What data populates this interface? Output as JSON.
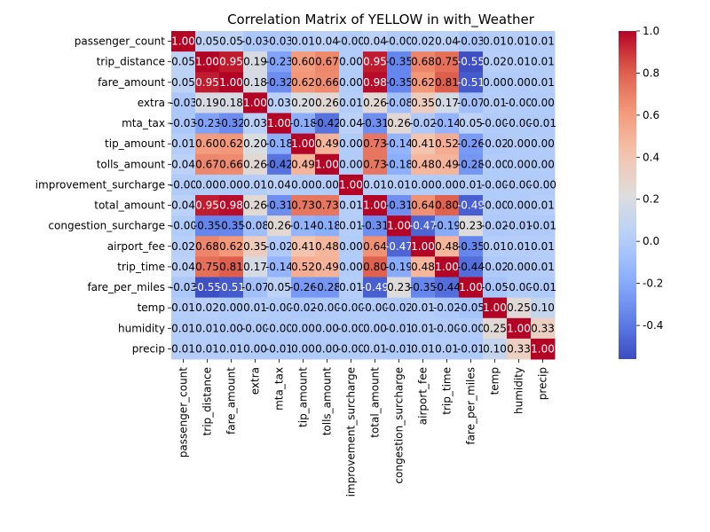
{
  "chart_data": {
    "type": "heatmap",
    "title": "Correlation Matrix of YELLOW in with_Weather",
    "colormap": "coolwarm",
    "color_range": [
      -0.56,
      1.0
    ],
    "colorbar_ticks": [
      "-0.4",
      "-0.2",
      "0.0",
      "0.2",
      "0.4",
      "0.6",
      "0.8",
      "1.0"
    ],
    "colorbar_tick_values": [
      -0.4,
      -0.2,
      0.0,
      0.2,
      0.4,
      0.6,
      0.8,
      1.0
    ],
    "variables": [
      "passenger_count",
      "trip_distance",
      "fare_amount",
      "extra",
      "mta_tax",
      "tip_amount",
      "tolls_amount",
      "improvement_surcharge",
      "total_amount",
      "congestion_surcharge",
      "airport_fee",
      "trip_time",
      "fare_per_miles",
      "temp",
      "humidity",
      "precip"
    ],
    "labels": [
      [
        "1.00",
        "0.05",
        "0.05",
        "-0.03",
        "-0.03",
        "0.01",
        "0.04",
        "-0.00",
        "0.04",
        "-0.00",
        "0.02",
        "0.04",
        "-0.03",
        "0.01",
        "0.01",
        "0.01"
      ],
      [
        "0.05",
        "1.00",
        "0.95",
        "0.19",
        "-0.23",
        "0.60",
        "0.67",
        "0.00",
        "0.95",
        "-0.35",
        "0.68",
        "0.75",
        "-0.55",
        "0.02",
        "0.01",
        "0.01"
      ],
      [
        "0.05",
        "0.95",
        "1.00",
        "0.18",
        "-0.32",
        "0.62",
        "0.66",
        "0.00",
        "0.98",
        "-0.35",
        "0.62",
        "0.81",
        "-0.51",
        "0.00",
        "0.00",
        "0.01"
      ],
      [
        "-0.03",
        "0.19",
        "0.18",
        "1.00",
        "0.03",
        "0.20",
        "0.26",
        "0.01",
        "0.26",
        "-0.08",
        "0.35",
        "0.17",
        "-0.07",
        "0.01",
        "-0.00",
        "0.00"
      ],
      [
        "-0.03",
        "-0.23",
        "-0.32",
        "0.03",
        "1.00",
        "-0.18",
        "-0.42",
        "0.04",
        "-0.31",
        "0.26",
        "-0.02",
        "-0.14",
        "0.05",
        "-0.00",
        "-0.00",
        "-0.01"
      ],
      [
        "0.01",
        "0.60",
        "0.62",
        "0.20",
        "-0.18",
        "1.00",
        "0.49",
        "0.00",
        "0.73",
        "-0.14",
        "0.41",
        "0.52",
        "-0.26",
        "-0.02",
        "0.00",
        "0.00"
      ],
      [
        "0.04",
        "0.67",
        "0.66",
        "0.26",
        "-0.42",
        "0.49",
        "1.00",
        "0.00",
        "0.73",
        "-0.18",
        "0.48",
        "0.49",
        "-0.28",
        "-0.00",
        "0.00",
        "0.00"
      ],
      [
        "-0.00",
        "0.00",
        "0.00",
        "0.01",
        "0.04",
        "0.00",
        "0.00",
        "1.00",
        "0.01",
        "0.01",
        "0.00",
        "0.00",
        "0.01",
        "-0.00",
        "-0.00",
        "-0.00"
      ],
      [
        "0.04",
        "0.95",
        "0.98",
        "0.26",
        "-0.31",
        "0.73",
        "0.73",
        "0.01",
        "1.00",
        "-0.31",
        "0.64",
        "0.80",
        "-0.49",
        "-0.00",
        "0.00",
        "0.01"
      ],
      [
        "-0.00",
        "-0.35",
        "-0.35",
        "-0.08",
        "0.26",
        "-0.14",
        "-0.18",
        "0.01",
        "-0.31",
        "1.00",
        "-0.47",
        "-0.19",
        "0.23",
        "-0.02",
        "-0.01",
        "-0.01"
      ],
      [
        "0.02",
        "0.68",
        "0.62",
        "0.35",
        "-0.02",
        "0.41",
        "0.48",
        "0.00",
        "0.64",
        "-0.47",
        "1.00",
        "0.48",
        "-0.35",
        "0.01",
        "0.01",
        "0.01"
      ],
      [
        "0.04",
        "0.75",
        "0.81",
        "0.17",
        "-0.14",
        "0.52",
        "0.49",
        "0.00",
        "0.80",
        "-0.19",
        "0.48",
        "1.00",
        "-0.44",
        "-0.02",
        "0.00",
        "0.01"
      ],
      [
        "-0.03",
        "-0.55",
        "-0.51",
        "-0.07",
        "0.05",
        "-0.26",
        "-0.28",
        "0.01",
        "-0.49",
        "0.23",
        "-0.35",
        "-0.44",
        "1.00",
        "-0.05",
        "-0.00",
        "-0.01"
      ],
      [
        "0.01",
        "0.02",
        "0.00",
        "0.01",
        "-0.00",
        "-0.02",
        "-0.00",
        "-0.00",
        "-0.00",
        "-0.02",
        "0.01",
        "-0.02",
        "-0.05",
        "1.00",
        "0.25",
        "0.10"
      ],
      [
        "0.01",
        "0.01",
        "0.00",
        "-0.00",
        "-0.00",
        "0.00",
        "0.00",
        "-0.00",
        "0.00",
        "-0.01",
        "0.01",
        "-0.00",
        "-0.00",
        "0.25",
        "1.00",
        "0.33"
      ],
      [
        "0.01",
        "0.01",
        "0.01",
        "0.00",
        "-0.01",
        "0.00",
        "0.00",
        "-0.00",
        "0.01",
        "-0.01",
        "0.01",
        "0.01",
        "-0.01",
        "0.10",
        "0.33",
        "1.00"
      ]
    ]
  }
}
